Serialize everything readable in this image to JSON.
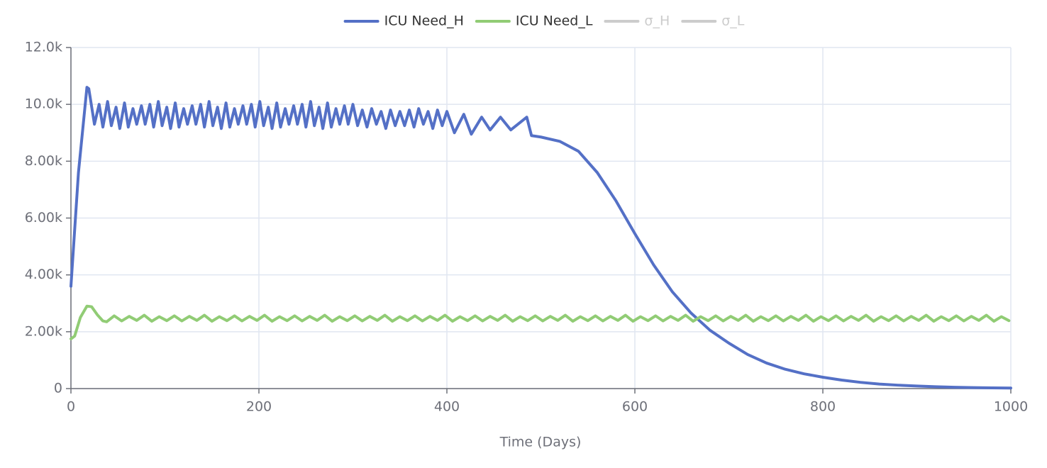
{
  "chart_data": {
    "type": "line",
    "x_label": "Time (Days)",
    "xlim": [
      0,
      1000
    ],
    "xticks": [
      0,
      200,
      400,
      600,
      800,
      1000
    ],
    "ylim": [
      0,
      12000
    ],
    "yticks": [
      0,
      {
        "value": 2000,
        "label": "2.00k"
      },
      {
        "value": 4000,
        "label": "4.00k"
      },
      {
        "value": 6000,
        "label": "6.00k"
      },
      {
        "value": 8000,
        "label": "8.00k"
      },
      {
        "value": 10000,
        "label": "10.0k"
      },
      {
        "value": 12000,
        "label": "12.0k"
      }
    ],
    "grid": true,
    "legend": "top",
    "series": [
      {
        "name": "ICU Need_H",
        "color": "#5470c6",
        "visible": true,
        "x": [
          0,
          8,
          17,
          19,
          25,
          30,
          34,
          39,
          43,
          48,
          52,
          57,
          61,
          66,
          70,
          75,
          79,
          84,
          88,
          93,
          97,
          102,
          106,
          111,
          115,
          120,
          124,
          129,
          133,
          138,
          142,
          147,
          151,
          156,
          160,
          165,
          169,
          174,
          178,
          183,
          187,
          192,
          196,
          201,
          205,
          210,
          214,
          219,
          223,
          228,
          232,
          237,
          241,
          246,
          250,
          255,
          259,
          264,
          268,
          273,
          277,
          282,
          286,
          291,
          295,
          300,
          305,
          310,
          315,
          320,
          325,
          330,
          335,
          340,
          345,
          350,
          355,
          360,
          365,
          370,
          375,
          380,
          385,
          390,
          395,
          400,
          408,
          418,
          426,
          437,
          446,
          457,
          468,
          485,
          490,
          500,
          520,
          540,
          560,
          580,
          600,
          620,
          640,
          660,
          680,
          700,
          720,
          740,
          760,
          780,
          800,
          820,
          840,
          860,
          880,
          900,
          920,
          940,
          960,
          980,
          1000
        ],
        "values": [
          3600,
          7600,
          10600,
          10550,
          9300,
          10000,
          9200,
          10100,
          9250,
          9900,
          9150,
          10050,
          9200,
          9850,
          9300,
          9950,
          9300,
          10000,
          9200,
          10100,
          9250,
          9900,
          9150,
          10050,
          9200,
          9850,
          9300,
          9950,
          9300,
          10000,
          9200,
          10100,
          9250,
          9900,
          9150,
          10050,
          9200,
          9850,
          9300,
          9950,
          9300,
          10000,
          9200,
          10100,
          9250,
          9900,
          9150,
          10050,
          9200,
          9850,
          9300,
          9950,
          9300,
          10000,
          9200,
          10100,
          9250,
          9900,
          9150,
          10050,
          9200,
          9850,
          9300,
          9950,
          9300,
          10000,
          9250,
          9800,
          9200,
          9850,
          9300,
          9750,
          9150,
          9800,
          9250,
          9750,
          9250,
          9800,
          9200,
          9850,
          9300,
          9750,
          9150,
          9800,
          9250,
          9750,
          9000,
          9650,
          8950,
          9550,
          9100,
          9550,
          9100,
          9550,
          8900,
          8850,
          8700,
          8350,
          7600,
          6600,
          5450,
          4350,
          3400,
          2650,
          2050,
          1600,
          1200,
          900,
          680,
          520,
          400,
          300,
          220,
          160,
          120,
          90,
          65,
          48,
          35,
          25,
          18
        ]
      },
      {
        "name": "ICU Need_L",
        "color": "#91cc75",
        "visible": true,
        "x": [
          0,
          4,
          10,
          17,
          22,
          28,
          34,
          38,
          46,
          54,
          62,
          70,
          78,
          86,
          94,
          102,
          110,
          118,
          126,
          134,
          142,
          150,
          158,
          166,
          174,
          182,
          190,
          198,
          206,
          214,
          222,
          230,
          238,
          246,
          254,
          262,
          270,
          278,
          286,
          294,
          302,
          310,
          318,
          326,
          334,
          342,
          350,
          358,
          366,
          374,
          382,
          390,
          398,
          406,
          414,
          422,
          430,
          438,
          446,
          454,
          462,
          470,
          478,
          486,
          494,
          502,
          510,
          518,
          526,
          534,
          542,
          550,
          558,
          566,
          574,
          582,
          590,
          598,
          606,
          614,
          622,
          630,
          638,
          646,
          654,
          662,
          670,
          678,
          686,
          694,
          702,
          710,
          718,
          726,
          734,
          742,
          750,
          758,
          766,
          774,
          782,
          790,
          798,
          806,
          814,
          822,
          830,
          838,
          846,
          854,
          862,
          870,
          878,
          886,
          894,
          902,
          910,
          918,
          926,
          934,
          942,
          950,
          958,
          966,
          974,
          982,
          990,
          998
        ],
        "values": [
          1750,
          1850,
          2500,
          2900,
          2880,
          2600,
          2380,
          2350,
          2560,
          2380,
          2540,
          2400,
          2580,
          2370,
          2530,
          2390,
          2560,
          2380,
          2540,
          2400,
          2580,
          2370,
          2530,
          2390,
          2560,
          2380,
          2540,
          2400,
          2580,
          2370,
          2530,
          2390,
          2560,
          2380,
          2540,
          2400,
          2580,
          2370,
          2530,
          2390,
          2560,
          2380,
          2540,
          2400,
          2580,
          2370,
          2530,
          2390,
          2560,
          2380,
          2540,
          2400,
          2580,
          2370,
          2530,
          2390,
          2560,
          2380,
          2540,
          2400,
          2580,
          2370,
          2530,
          2390,
          2560,
          2380,
          2540,
          2400,
          2580,
          2370,
          2530,
          2390,
          2560,
          2380,
          2540,
          2400,
          2580,
          2370,
          2530,
          2390,
          2560,
          2380,
          2540,
          2400,
          2580,
          2370,
          2530,
          2390,
          2560,
          2380,
          2540,
          2400,
          2580,
          2370,
          2530,
          2390,
          2560,
          2380,
          2540,
          2400,
          2580,
          2370,
          2530,
          2390,
          2560,
          2380,
          2540,
          2400,
          2580,
          2370,
          2530,
          2390,
          2560,
          2380,
          2540,
          2400,
          2580,
          2370,
          2530,
          2390,
          2560,
          2380,
          2540,
          2400,
          2580,
          2370,
          2530,
          2390
        ]
      },
      {
        "name": "σ_H",
        "visible": false
      },
      {
        "name": "σ_L",
        "visible": false
      }
    ]
  }
}
